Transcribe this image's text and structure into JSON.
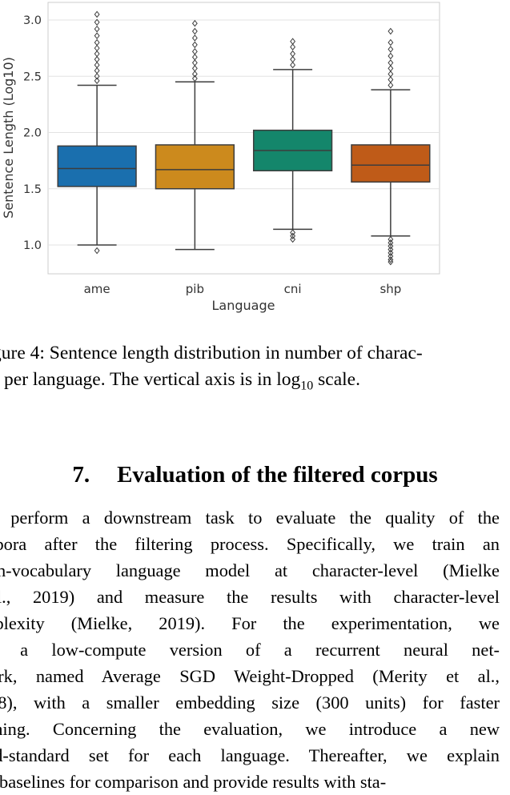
{
  "chart_data": {
    "type": "box",
    "xlabel": "Language",
    "ylabel": "Sentence Length (Log10)",
    "ylim": [
      0.74,
      3.16
    ],
    "yticks": [
      "1.0",
      "1.5",
      "2.0",
      "2.5",
      "3.0"
    ],
    "grid": true,
    "categories": [
      "ame",
      "pib",
      "cni",
      "shp"
    ],
    "boxes": [
      {
        "category": "ame",
        "color": "#1a6fae",
        "whisker_low": 1.0,
        "q1": 1.52,
        "median": 1.68,
        "q3": 1.88,
        "whisker_high": 2.42,
        "outliers_low": [
          0.95
        ],
        "outliers_high": [
          2.46,
          2.5,
          2.55,
          2.6,
          2.65,
          2.7,
          2.75,
          2.8,
          2.86,
          2.92,
          2.98,
          3.05
        ]
      },
      {
        "category": "pib",
        "color": "#cc8a1d",
        "whisker_low": 0.96,
        "q1": 1.5,
        "median": 1.67,
        "q3": 1.89,
        "whisker_high": 2.45,
        "outliers_low": [],
        "outliers_high": [
          2.48,
          2.52,
          2.57,
          2.62,
          2.67,
          2.72,
          2.78,
          2.84,
          2.9,
          2.97
        ]
      },
      {
        "category": "cni",
        "color": "#14866b",
        "whisker_low": 1.14,
        "q1": 1.66,
        "median": 1.84,
        "q3": 2.02,
        "whisker_high": 2.56,
        "outliers_low": [
          1.11,
          1.08,
          1.05
        ],
        "outliers_high": [
          2.6,
          2.65,
          2.7,
          2.76,
          2.81
        ]
      },
      {
        "category": "shp",
        "color": "#bf5b18",
        "whisker_low": 1.08,
        "q1": 1.56,
        "median": 1.71,
        "q3": 1.89,
        "whisker_high": 2.38,
        "outliers_low": [
          1.05,
          1.02,
          0.99,
          0.96,
          0.93,
          0.9,
          0.87,
          0.85
        ],
        "outliers_high": [
          2.42,
          2.47,
          2.52,
          2.57,
          2.62,
          2.68,
          2.74,
          2.8,
          2.9
        ]
      }
    ]
  },
  "caption": {
    "line1": "gure 4: Sentence length distribution in number of charac-",
    "line2_pre": "s per language. The vertical axis is in log",
    "line2_sub": "10",
    "line2_post": " scale."
  },
  "section": {
    "number": "7.",
    "title": "Evaluation of the filtered corpus"
  },
  "body_lines": [
    "e perform a downstream task to evaluate the quality of the",
    "rpora after the filtering process. Specifically, we train an",
    "en-vocabulary language model at character-level (Mielke",
    "al., 2019) and measure the results with character-level",
    "rplexity (Mielke, 2019).  For the experimentation, we",
    "e a low-compute version of a recurrent neural net-",
    "ork, named Average SGD Weight-Dropped (Merity et al.,",
    "18), with a smaller embedding size (300 units) for faster",
    "ining.  Concerning the evaluation, we introduce a new",
    "ld-standard set for each language. Thereafter, we explain",
    "r baselines for comparison and provide results with sta-"
  ]
}
